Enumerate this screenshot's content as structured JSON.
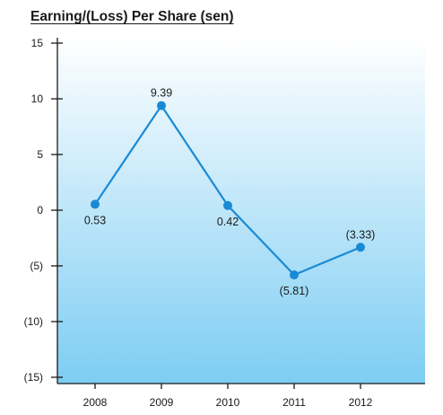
{
  "chart_data": {
    "type": "line",
    "title": "Earning/(Loss) Per Share (sen)",
    "xlabel": "",
    "ylabel": "",
    "categories": [
      "2008",
      "2009",
      "2010",
      "2011",
      "2012"
    ],
    "series": [
      {
        "values": [
          0.53,
          9.39,
          0.42,
          -5.81,
          -3.33
        ],
        "labels": [
          "0.53",
          "9.39",
          "0.42",
          "(5.81)",
          "(3.33)"
        ]
      }
    ],
    "ylim": [
      -15,
      15
    ],
    "yticks": [
      15,
      10,
      5,
      0,
      -5,
      -10,
      -15
    ],
    "ytick_labels": [
      "15",
      "10",
      "5",
      "0",
      "(5)",
      "(10)",
      "(15)"
    ],
    "grid": false,
    "legend": "none",
    "colors": {
      "line": "#1a8ad4",
      "marker": "#1a8ad4",
      "background_top": "#ffffff",
      "background_bottom": "#7dcdf3",
      "axis": "#1a1a1a"
    }
  }
}
